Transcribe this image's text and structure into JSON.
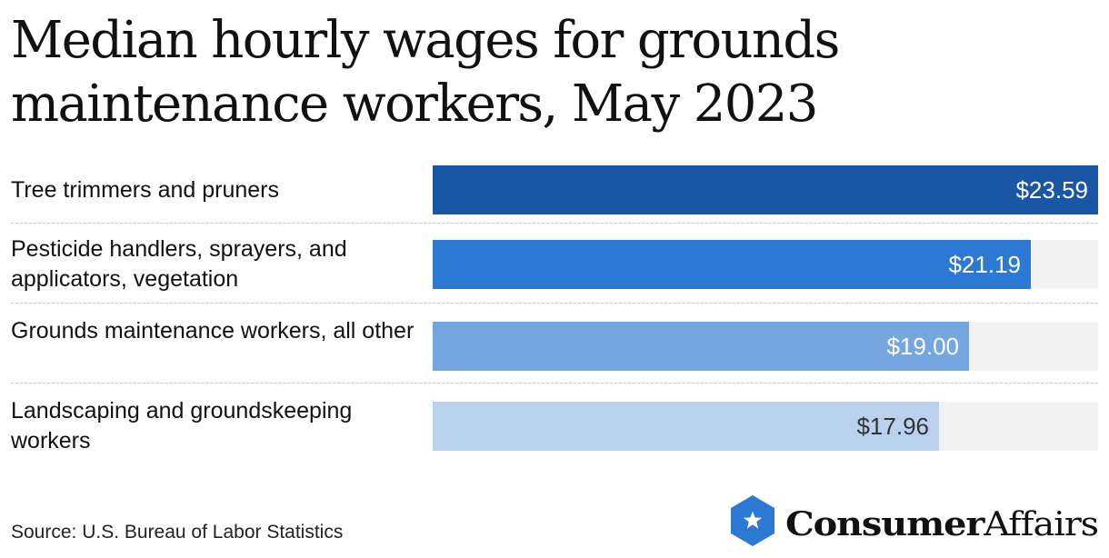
{
  "chart_data": {
    "type": "bar",
    "orientation": "horizontal",
    "title": "Median hourly wages for grounds maintenance workers, May 2023",
    "categories": [
      "Tree trimmers and pruners",
      "Pesticide handlers, sprayers, and applicators, vegetation",
      "Grounds maintenance workers, all other",
      "Landscaping and groundskeeping workers"
    ],
    "values": [
      23.59,
      21.19,
      19.0,
      17.96
    ],
    "value_labels": [
      "$23.59",
      "$21.19",
      "$19.00",
      "$17.96"
    ],
    "xlim": [
      0,
      23.59
    ],
    "grid": false,
    "legend": "none"
  },
  "colors": {
    "bars": [
      "#1a56a6",
      "#2b79d3",
      "#74a7e2",
      "#bad1ee"
    ],
    "value_text": [
      "#ffffff",
      "#ffffff",
      "#ffffff",
      "#333333"
    ],
    "track": "#f2f2f2",
    "logo_hexagon": "#2b79d3"
  },
  "footer": {
    "source": "Source: U.S. Bureau of Labor Statistics"
  },
  "logo": {
    "brand_bold": "Consumer",
    "brand_regular": "Affairs",
    "icon": "star-hexagon-icon"
  }
}
